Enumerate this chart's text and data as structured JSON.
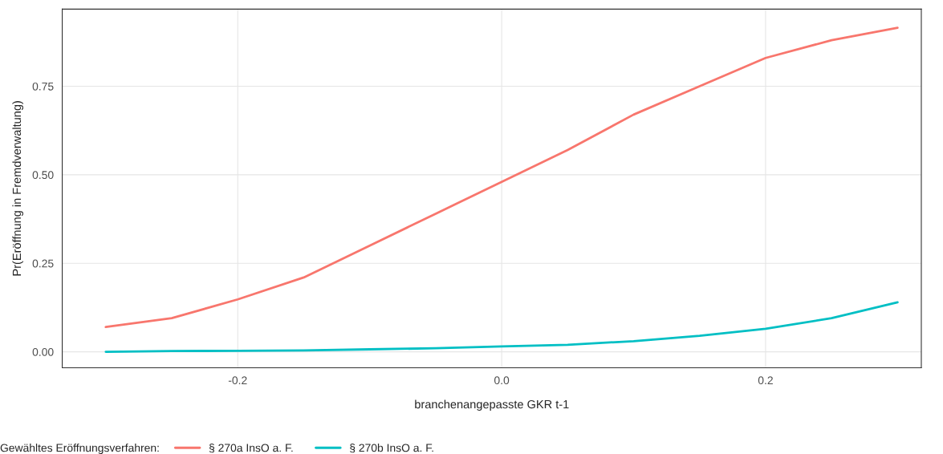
{
  "chart_data": {
    "type": "line",
    "xlabel": "branchenangepasste GKR t-1",
    "ylabel": "Pr(Eröffnung in Fremdverwaltung)",
    "legend_title": "Gewähltes Eröffnungsverfahren:",
    "x": [
      -0.3,
      -0.25,
      -0.2,
      -0.15,
      -0.1,
      -0.05,
      0.0,
      0.05,
      0.1,
      0.15,
      0.2,
      0.25,
      0.3
    ],
    "series": [
      {
        "name": "§ 270a InsO a. F.",
        "color": "#f8766d",
        "values": [
          0.07,
          0.095,
          0.148,
          0.21,
          0.3,
          0.39,
          0.48,
          0.57,
          0.67,
          0.75,
          0.83,
          0.88,
          0.915
        ]
      },
      {
        "name": "§ 270b InsO a. F.",
        "color": "#00bfc4",
        "values": [
          0.0,
          0.002,
          0.003,
          0.004,
          0.007,
          0.01,
          0.015,
          0.02,
          0.03,
          0.045,
          0.065,
          0.095,
          0.14
        ]
      }
    ],
    "xlim": [
      -0.333,
      0.318
    ],
    "ylim": [
      -0.045,
      0.968
    ],
    "xticks": [
      {
        "value": -0.2,
        "label": "-0.2"
      },
      {
        "value": 0.0,
        "label": "0.0"
      },
      {
        "value": 0.2,
        "label": "0.2"
      }
    ],
    "yticks": [
      {
        "value": 0.0,
        "label": "0.00"
      },
      {
        "value": 0.25,
        "label": "0.25"
      },
      {
        "value": 0.5,
        "label": "0.50"
      },
      {
        "value": 0.75,
        "label": "0.75"
      }
    ],
    "grid": true,
    "legend": "bottom",
    "line_style": "solid"
  }
}
